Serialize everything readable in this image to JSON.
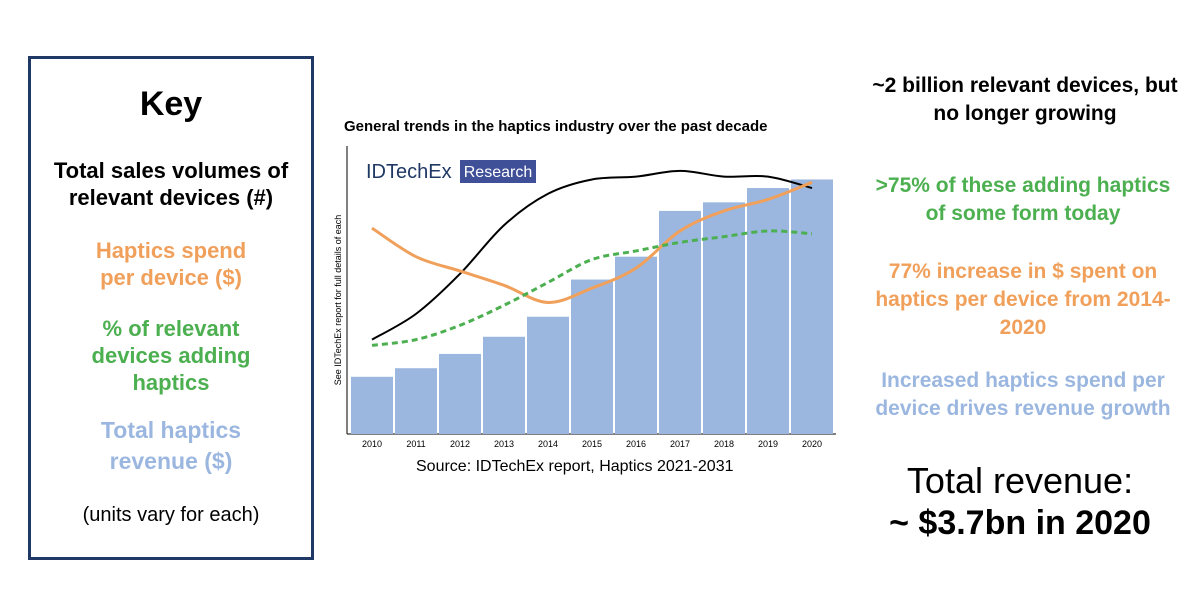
{
  "key": {
    "title": "Key",
    "volumes": "Total sales volumes of relevant devices (#)",
    "spend": "Haptics spend per device ($)",
    "percent": "% of relevant devices adding haptics",
    "revenue": "Total haptics revenue ($)",
    "note": "(units vary for each)"
  },
  "colors": {
    "border": "#1f3864",
    "volumes": "#000000",
    "spend": "#f0a05a",
    "percent": "#4caf50",
    "revenue": "#9bb7e0",
    "logo_bg": "#3f4f98"
  },
  "logo": {
    "brand": "IDTechEx",
    "tag": "Research"
  },
  "source": "Source: IDTechEx report, Haptics 2021-2031",
  "right": {
    "devices": "~2 billion relevant devices, but no longer growing",
    "adding": ">75% of these adding haptics of some form today",
    "increase": "77% increase in $ spent on haptics per device from 2014-2020",
    "drives": "Increased haptics spend per device drives revenue growth",
    "total_label": "Total revenue:",
    "total_value": "~ $3.7bn in 2020"
  },
  "chart_data": {
    "type": "bar",
    "title": "General trends in the haptics industry over the past decade",
    "ylabel": "See IDTechEx report for full details of each",
    "xlabel": "",
    "categories": [
      "2010",
      "2011",
      "2012",
      "2013",
      "2014",
      "2015",
      "2016",
      "2017",
      "2018",
      "2019",
      "2020"
    ],
    "ylim": [
      0,
      100
    ],
    "grid": false,
    "series": [
      {
        "kind": "bar",
        "values": [
          20,
          23,
          28,
          34,
          41,
          54,
          62,
          78,
          81,
          86,
          89
        ]
      },
      {
        "kind": "line",
        "values": [
          33,
          42,
          56,
          73,
          84,
          89,
          90,
          92,
          90,
          90,
          86
        ]
      },
      {
        "kind": "line",
        "values": [
          72,
          62,
          57,
          52,
          46,
          51,
          58,
          71,
          78,
          82,
          88
        ]
      },
      {
        "kind": "line-dashed",
        "values": [
          31,
          33,
          38,
          45,
          53,
          61,
          64,
          67,
          69,
          71,
          70
        ]
      }
    ]
  }
}
